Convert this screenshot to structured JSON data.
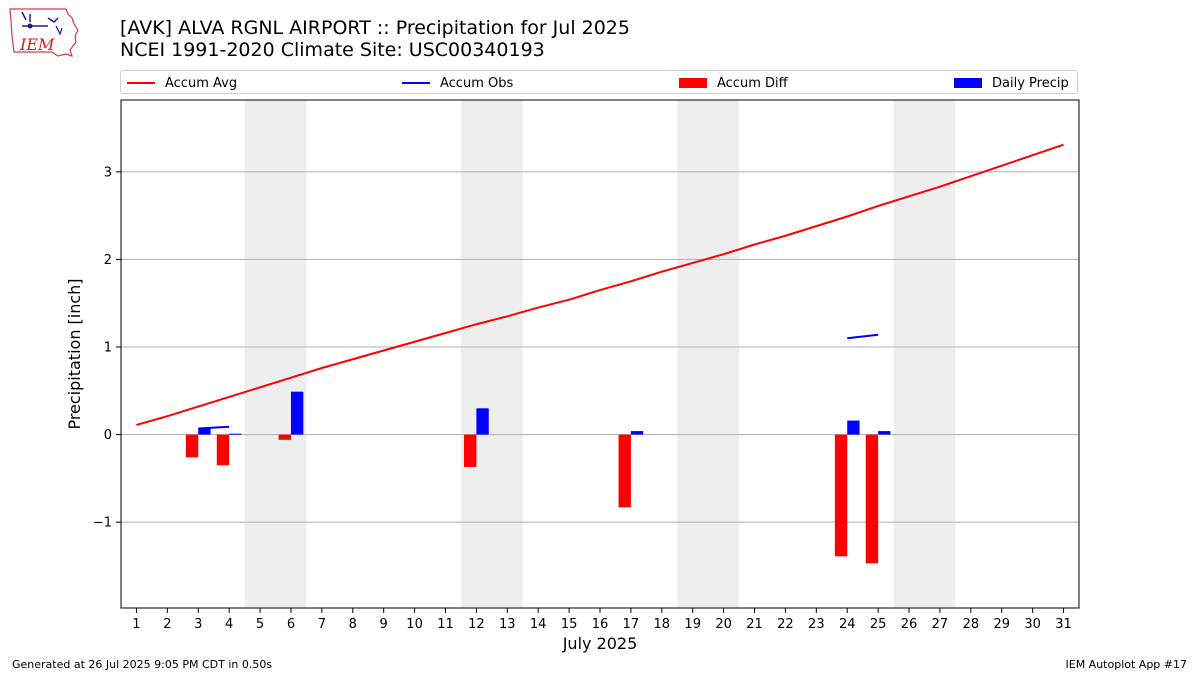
{
  "logo_text": "IEM",
  "title": {
    "line1": "[AVK] ALVA RGNL AIRPORT :: Precipitation for Jul 2025",
    "line2": "NCEI 1991-2020 Climate Site: USC00340193"
  },
  "legend": {
    "items": [
      {
        "label": "Accum Avg",
        "kind": "line",
        "color": "#ff0000"
      },
      {
        "label": "Accum Obs",
        "kind": "line",
        "color": "#0000ff"
      },
      {
        "label": "Accum Diff",
        "kind": "box",
        "color": "#ff0000"
      },
      {
        "label": "Daily Precip",
        "kind": "box",
        "color": "#0000ff"
      }
    ]
  },
  "footer": {
    "left": "Generated at 26 Jul 2025 9:05 PM CDT in 0.50s",
    "right": "IEM Autoplot App #17"
  },
  "chart_data": {
    "type": "bar",
    "xlabel": "July 2025",
    "ylabel": "Precipitation [inch]",
    "x": [
      1,
      2,
      3,
      4,
      5,
      6,
      7,
      8,
      9,
      10,
      11,
      12,
      13,
      14,
      15,
      16,
      17,
      18,
      19,
      20,
      21,
      22,
      23,
      24,
      25,
      26,
      27,
      28,
      29,
      30,
      31
    ],
    "xlim": [
      0.5,
      31.5
    ],
    "ylim": [
      -1.98,
      3.82
    ],
    "yticks": [
      -1,
      0,
      1,
      2,
      3
    ],
    "ytick_labels": [
      "−1",
      "0",
      "1",
      "2",
      "3"
    ],
    "grid": "y",
    "legend_position": "top",
    "weekend_bands": [
      [
        4.5,
        6.5
      ],
      [
        11.5,
        13.5
      ],
      [
        18.5,
        20.5
      ],
      [
        25.5,
        27.5
      ]
    ],
    "series": [
      {
        "name": "Accum Avg",
        "type": "line",
        "color": "#ff0000",
        "x": [
          1,
          2,
          3,
          4,
          5,
          6,
          7,
          8,
          9,
          10,
          11,
          12,
          13,
          14,
          15,
          16,
          17,
          18,
          19,
          20,
          21,
          22,
          23,
          24,
          25,
          26,
          27,
          28,
          29,
          30,
          31
        ],
        "values": [
          0.11,
          0.21,
          0.32,
          0.43,
          0.54,
          0.65,
          0.76,
          0.86,
          0.96,
          1.06,
          1.16,
          1.26,
          1.35,
          1.45,
          1.54,
          1.65,
          1.75,
          1.86,
          1.96,
          2.06,
          2.17,
          2.27,
          2.38,
          2.49,
          2.61,
          2.72,
          2.83,
          2.95,
          3.07,
          3.19,
          3.31
        ]
      },
      {
        "name": "Accum Obs",
        "type": "line",
        "color": "#0000ff",
        "segments": [
          {
            "x": [
              3,
              4
            ],
            "values": [
              0.07,
              0.09
            ]
          },
          {
            "x": [
              24,
              25
            ],
            "values": [
              1.1,
              1.14
            ]
          }
        ]
      },
      {
        "name": "Accum Diff",
        "type": "bar",
        "color": "#ff0000",
        "x": [
          3,
          4,
          6,
          12,
          17,
          24,
          25
        ],
        "values": [
          -0.26,
          -0.35,
          -0.06,
          -0.37,
          -0.83,
          -1.39,
          -1.47
        ]
      },
      {
        "name": "Daily Precip",
        "type": "bar",
        "color": "#0000ff",
        "x": [
          3,
          4,
          6,
          12,
          17,
          24,
          25
        ],
        "values": [
          0.07,
          0.01,
          0.49,
          0.3,
          0.04,
          0.16,
          0.04
        ]
      }
    ]
  }
}
